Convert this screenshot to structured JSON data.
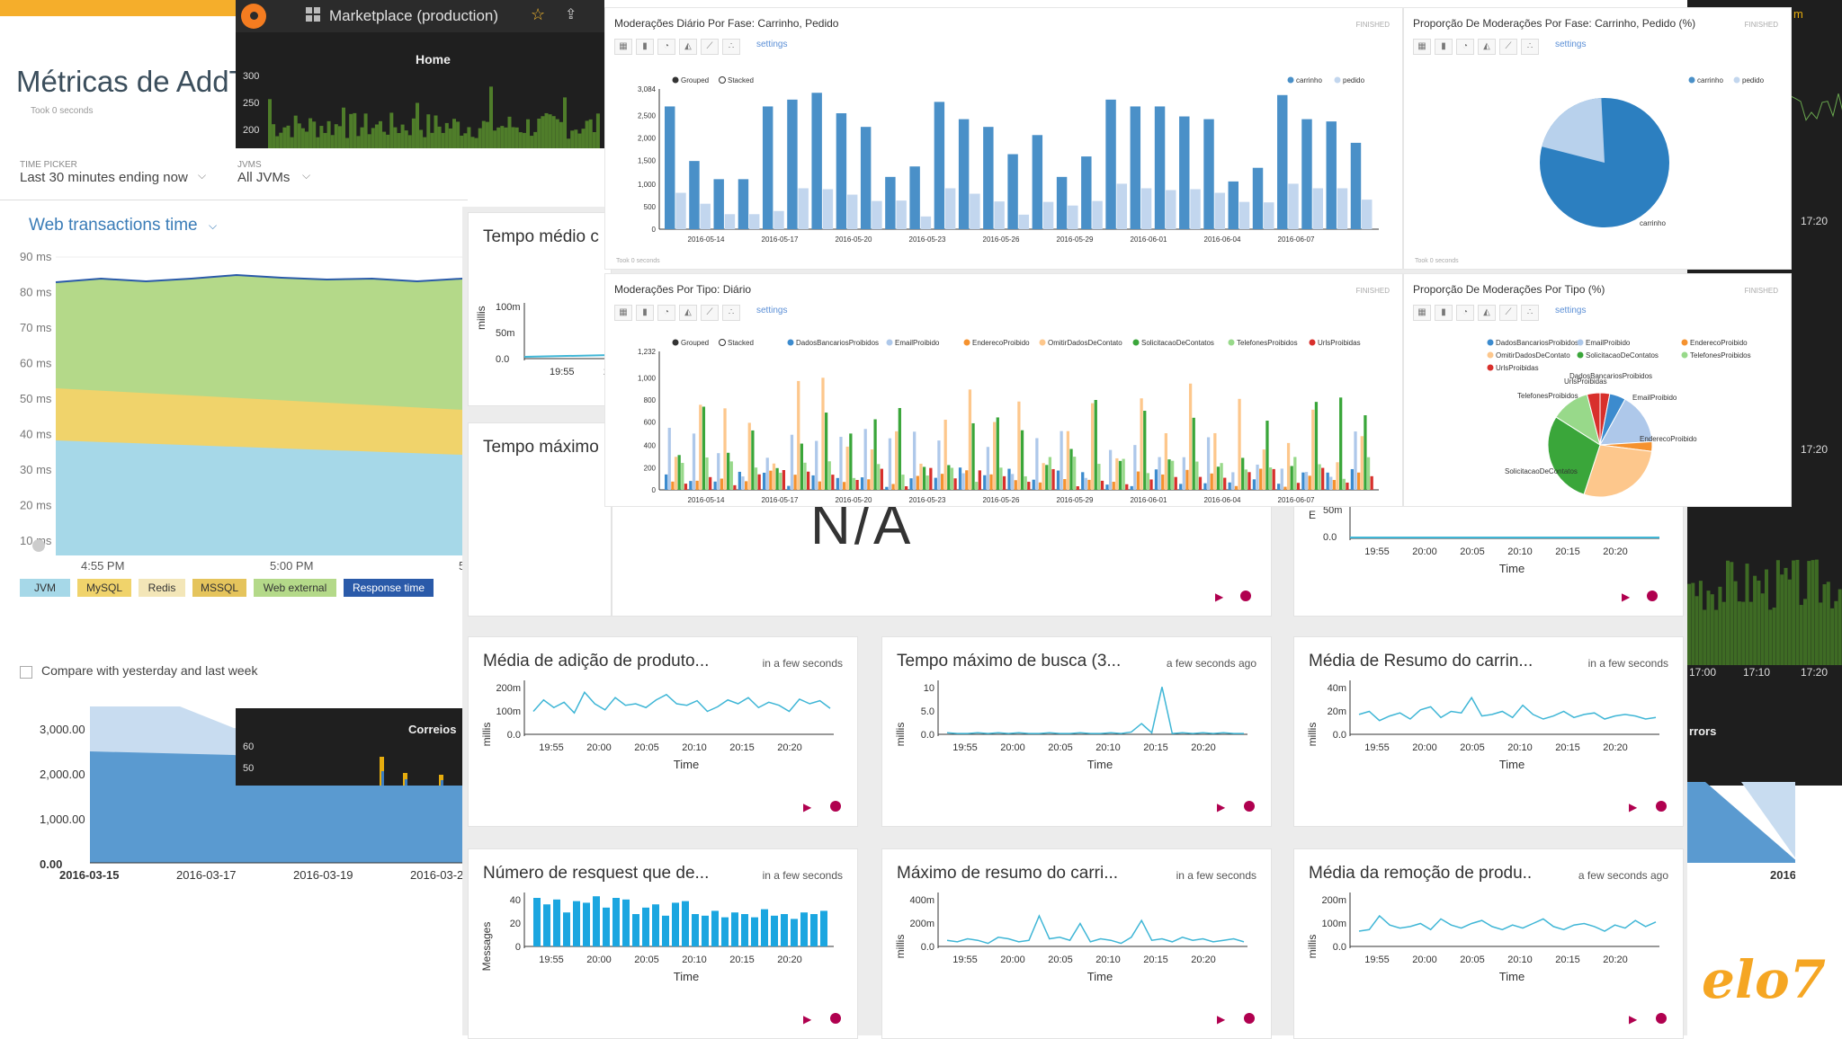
{
  "newrelic": {
    "title": "Métricas de AddT",
    "took": "Took 0 seconds",
    "time_picker_label": "TIME PICKER",
    "time_picker_value": "Last 30 minutes ending now",
    "jvms_label": "JVMS",
    "jvms_value": "All JVMs",
    "section_title": "Web transactions time",
    "y_ticks": [
      "90 ms",
      "80 ms",
      "70 ms",
      "60 ms",
      "50 ms",
      "40 ms",
      "30 ms",
      "20 ms",
      "10 ms"
    ],
    "x_ticks": [
      "4:55 PM",
      "5:00 PM",
      "5:05 PM"
    ],
    "legend": [
      {
        "label": "JVM",
        "color": "#a6d8e8"
      },
      {
        "label": "MySQL",
        "color": "#f0d36b"
      },
      {
        "label": "Redis",
        "color": "#f3e6b8"
      },
      {
        "label": "MSSQL",
        "color": "#e5c45c"
      },
      {
        "label": "Web external",
        "color": "#b4d989"
      },
      {
        "label": "Response time",
        "color": "#2a5aa9"
      }
    ],
    "compare_label": "Compare with yesterday and last week",
    "lower_y_ticks": [
      "3,000.00",
      "2,000.00",
      "1,000.00",
      "0.00"
    ],
    "lower_x_ticks": [
      "2016-03-15",
      "2016-03-17",
      "2016-03-19",
      "2016-03-2"
    ]
  },
  "grafana": {
    "dashboard": "Marketplace (production)",
    "home_title": "Home",
    "home_y": [
      "300",
      "250",
      "200"
    ],
    "correios_title": "Correios",
    "correios_y": [
      "60",
      "50"
    ],
    "right_labels": [
      "17:20",
      "17:20",
      "17:00",
      "17:10",
      "17:20",
      "rrors",
      "2016-0",
      "m"
    ]
  },
  "panels": [
    {
      "id": "tempo-medio",
      "title": "Tempo médio c",
      "ylabel": "millis",
      "yticks": [
        "100m",
        "50m",
        "0.0"
      ],
      "xticks": [
        "19:55",
        "2"
      ]
    },
    {
      "id": "tempo-maximo",
      "title": "Tempo máximo",
      "value": "N/A"
    },
    {
      "id": "right-top",
      "yticks": [
        "50m",
        "0.0"
      ],
      "xticks": [
        "19:55",
        "20:00",
        "20:05",
        "20:10",
        "20:15",
        "20:20"
      ],
      "xlabel": "Time",
      "ylabel": "E"
    },
    {
      "id": "media-adicao",
      "title": "Média de adição de produto...",
      "time": "in a few seconds",
      "ylabel": "millis",
      "yticks": [
        "200m",
        "100m",
        "0.0"
      ],
      "xticks": [
        "19:55",
        "20:00",
        "20:05",
        "20:10",
        "20:15",
        "20:20"
      ],
      "xlabel": "Time"
    },
    {
      "id": "tempo-busca",
      "title": "Tempo máximo de busca (3...",
      "time": "a few seconds ago",
      "ylabel": "millis",
      "yticks": [
        "10",
        "5.0",
        "0.0"
      ],
      "xticks": [
        "19:55",
        "20:00",
        "20:05",
        "20:10",
        "20:15",
        "20:20"
      ],
      "xlabel": "Time"
    },
    {
      "id": "media-resumo",
      "title": "Média de Resumo do carrin...",
      "time": "in a few seconds",
      "ylabel": "millis",
      "yticks": [
        "40m",
        "20m",
        "0.0"
      ],
      "xticks": [
        "19:55",
        "20:00",
        "20:05",
        "20:10",
        "20:15",
        "20:20"
      ],
      "xlabel": "Time"
    },
    {
      "id": "numero-request",
      "title": "Número de resquest que de...",
      "time": "in a few seconds",
      "ylabel": "Messages",
      "yticks": [
        "40",
        "20",
        "0"
      ],
      "xticks": [
        "19:55",
        "20:00",
        "20:05",
        "20:10",
        "20:15",
        "20:20"
      ],
      "xlabel": "Time"
    },
    {
      "id": "maximo-resumo",
      "title": "Máximo de resumo do carri...",
      "time": "in a few seconds",
      "ylabel": "millis",
      "yticks": [
        "400m",
        "200m",
        "0.0"
      ],
      "xticks": [
        "19:55",
        "20:00",
        "20:05",
        "20:10",
        "20:15",
        "20:20"
      ],
      "xlabel": "Time"
    },
    {
      "id": "media-remocao",
      "title": "Média da remoção de produ..",
      "time": "a few seconds ago",
      "ylabel": "millis",
      "yticks": [
        "200m",
        "100m",
        "0.0"
      ],
      "xticks": [
        "19:55",
        "20:00",
        "20:05",
        "20:10",
        "20:15",
        "20:20"
      ],
      "xlabel": "Time"
    }
  ],
  "kibana": {
    "finished": "FINISHED",
    "took": "Took 0 seconds",
    "settings": "settings",
    "grouped": "Grouped",
    "stacked": "Stacked",
    "fase": {
      "title": "Moderações Diário Por Fase: Carrinho, Pedido",
      "legend": [
        "carrinho",
        "pedido"
      ],
      "colors": [
        "#4a90c8",
        "#c2d6ee"
      ],
      "yticks": [
        "3,084",
        "2,500",
        "2,000",
        "1,500",
        "1,000",
        "500",
        "0"
      ],
      "xticks": [
        "2016-05-14",
        "2016-05-17",
        "2016-05-20",
        "2016-05-23",
        "2016-05-26",
        "2016-05-29",
        "2016-06-01",
        "2016-06-04",
        "2016-06-07"
      ]
    },
    "fase_pie": {
      "title": "Proporção De Moderações Por Fase: Carrinho, Pedido (%)",
      "legend": [
        "carrinho",
        "pedido"
      ],
      "labels": [
        "pedido",
        "carrinho"
      ]
    },
    "tipo": {
      "title": "Moderações Por Tipo: Diário",
      "legend": [
        "DadosBancariosProibidos",
        "EmailProibido",
        "EnderecoProibido",
        "OmitirDadosDeContato",
        "SolicitacaoDeContatos",
        "TelefonesProibidos",
        "UrlsProibidas"
      ],
      "colors": [
        "#3c8bce",
        "#aec8ea",
        "#f5922f",
        "#fdc78c",
        "#3aa63a",
        "#98d98a",
        "#d8302c"
      ],
      "yticks": [
        "1,232",
        "1,000",
        "800",
        "600",
        "400",
        "200",
        "0"
      ],
      "xticks": [
        "2016-05-14",
        "2016-05-17",
        "2016-05-20",
        "2016-05-23",
        "2016-05-26",
        "2016-05-29",
        "2016-06-01",
        "2016-06-04",
        "2016-06-07"
      ]
    },
    "tipo_pie": {
      "title": "Proporção De Moderações Por Tipo (%)",
      "labels": [
        "DadosBancariosProibidos",
        "UrlsProibidas",
        "EmailProibido",
        "TelefonesProibidos",
        "EnderecoProibido",
        "SolicitacaoDeContatos",
        "OmitirDadosDeContato"
      ]
    }
  },
  "brand": "elo7"
}
